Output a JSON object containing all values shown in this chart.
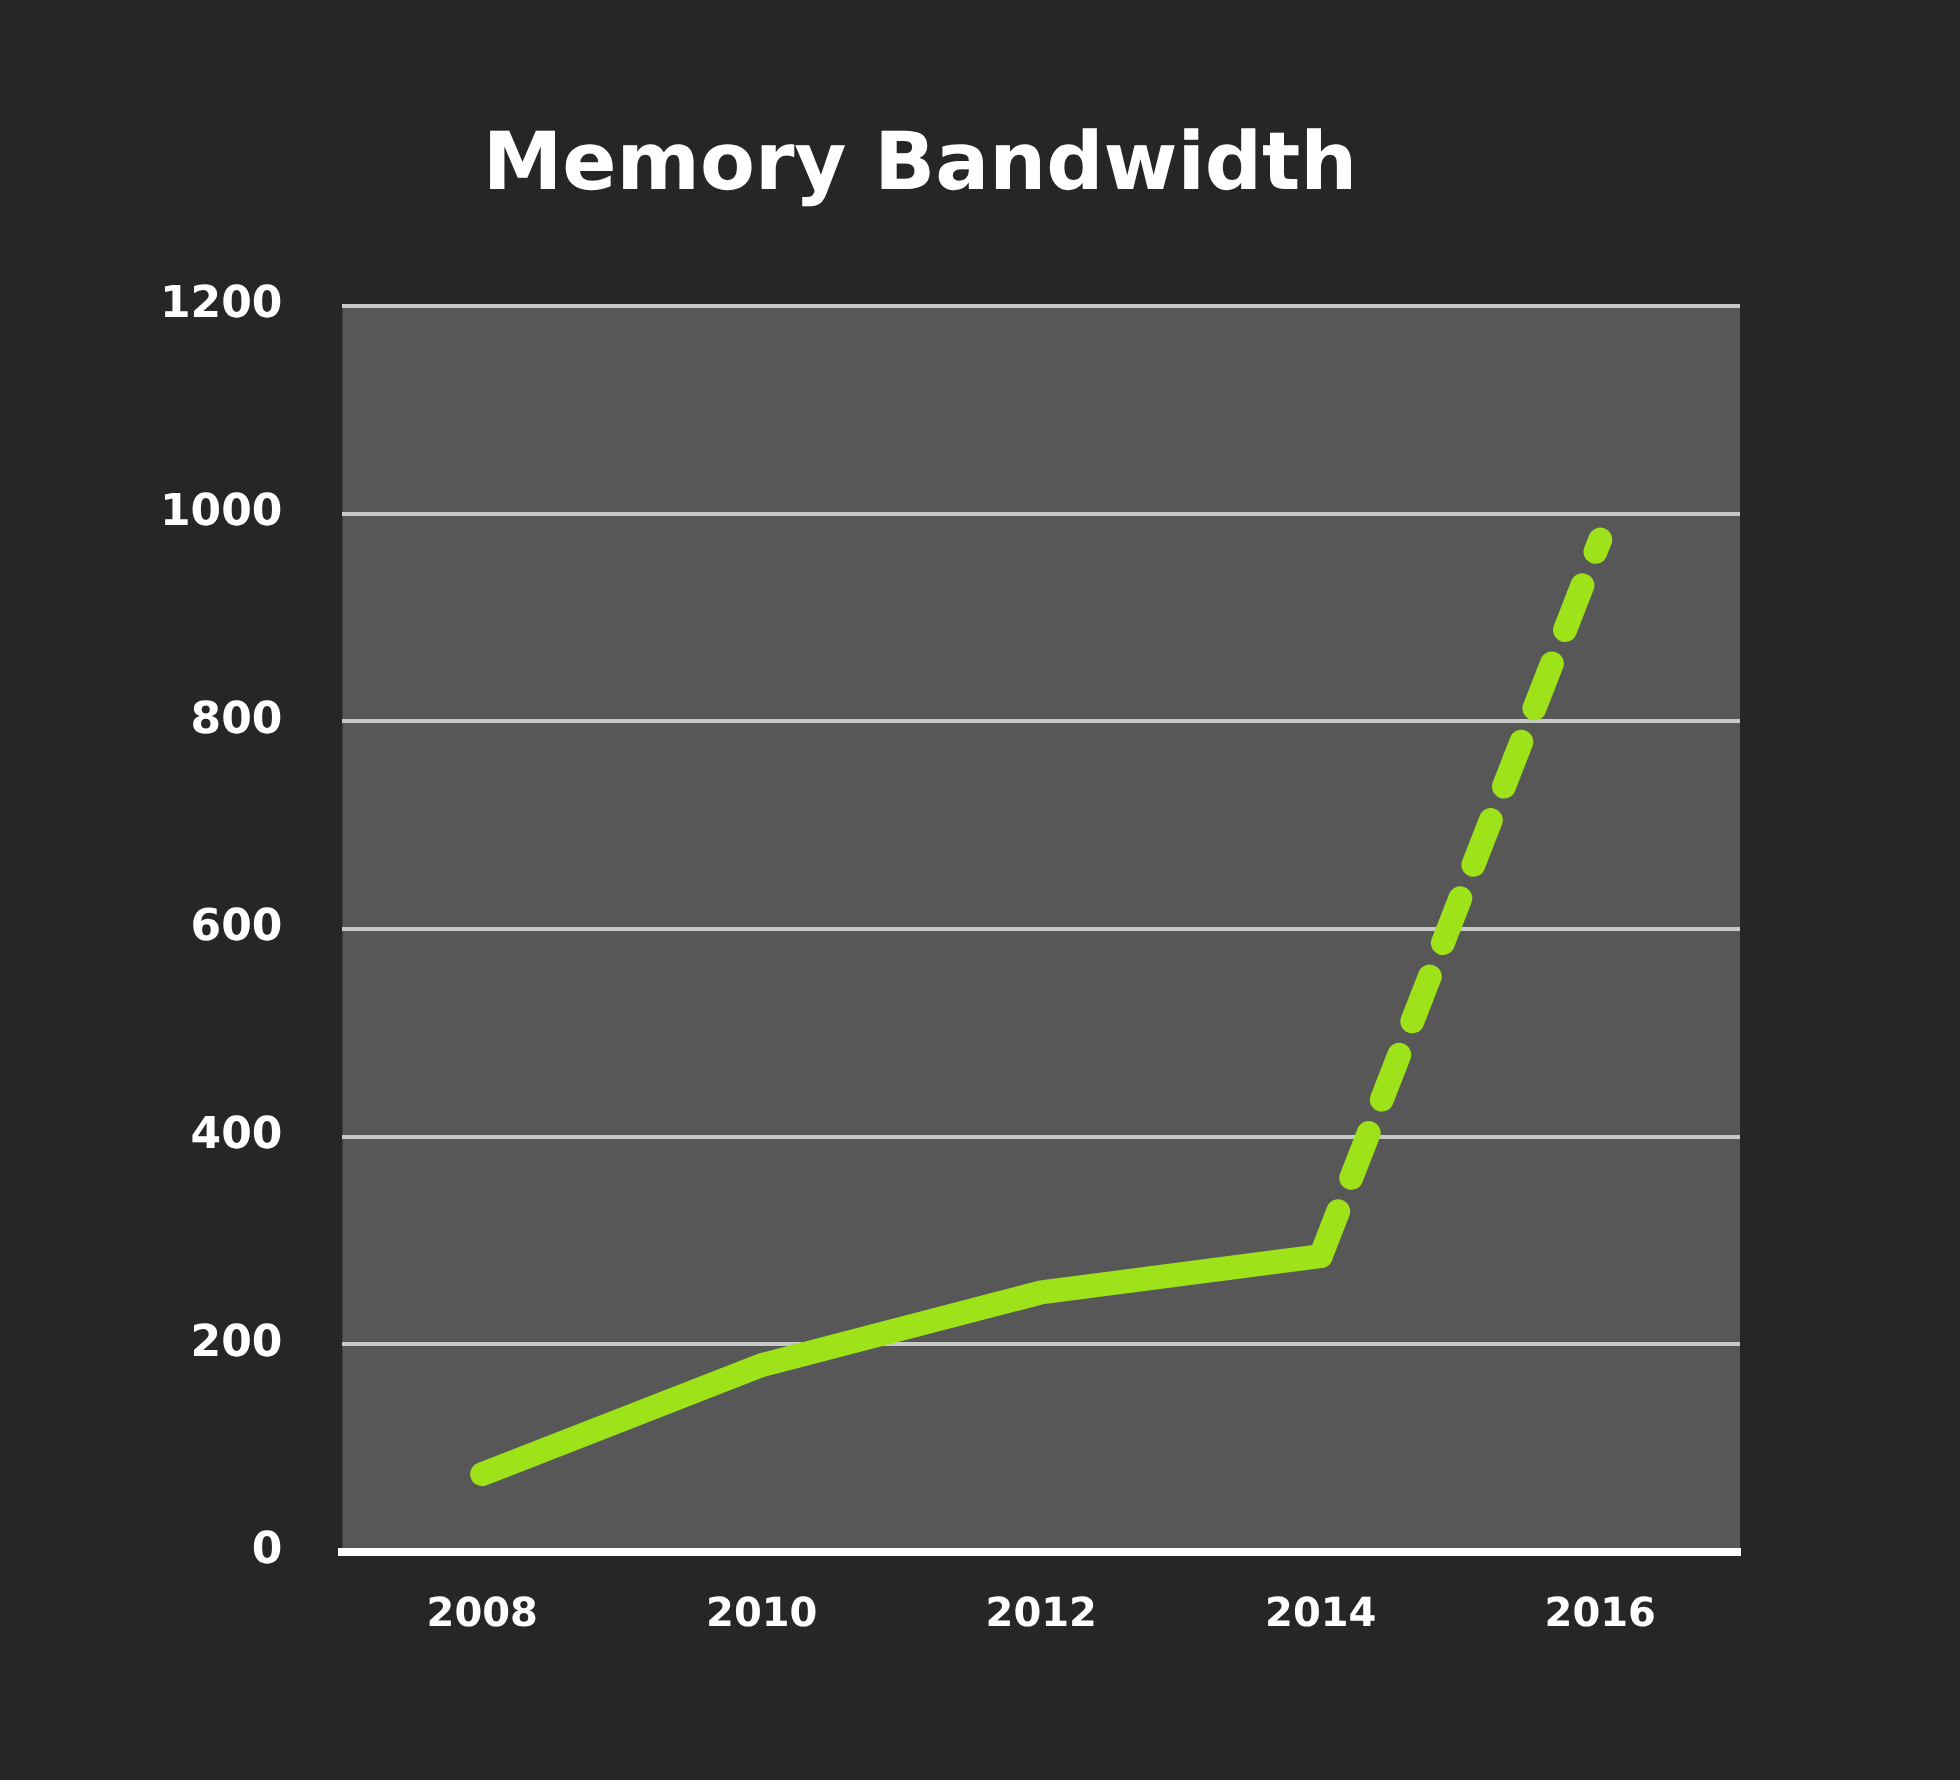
{
  "chart_data": {
    "type": "line",
    "title": "Memory Bandwidth",
    "categories": [
      "2008",
      "2010",
      "2012",
      "2014",
      "2016"
    ],
    "series": [
      {
        "color": "#9ee21a",
        "values": [
          75,
          180,
          250,
          285,
          null
        ],
        "line_style": "solid"
      },
      {
        "color": "#9ee21a",
        "values": [
          null,
          null,
          null,
          285,
          975
        ],
        "line_style": "dashed"
      }
    ],
    "ylim": [
      0,
      1200
    ],
    "yticks": [
      0,
      200,
      400,
      600,
      800,
      1000,
      1200
    ],
    "grid": "y",
    "legend": false,
    "marker": "none"
  }
}
